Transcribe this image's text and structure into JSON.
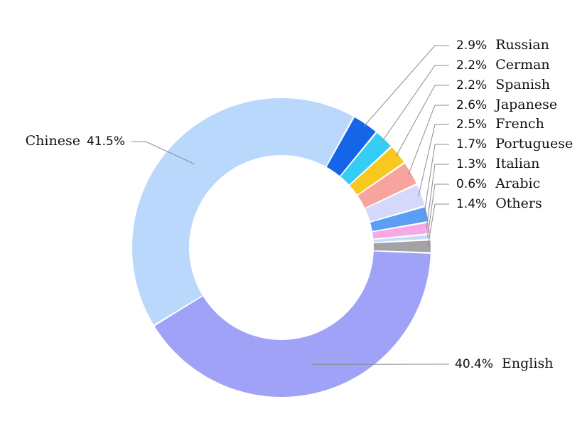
{
  "chart_data": {
    "type": "pie",
    "variant": "donut",
    "title": "",
    "legend": "none",
    "slices": [
      {
        "label": "Russian",
        "value_label": "2.9%",
        "value": 2.9,
        "color": "#1565e8"
      },
      {
        "label": "Cerman",
        "value_label": "2.2%",
        "value": 2.2,
        "color": "#35cdf6"
      },
      {
        "label": "Spanish",
        "value_label": "2.2%",
        "value": 2.2,
        "color": "#f9c81e"
      },
      {
        "label": "Japanese",
        "value_label": "2.6%",
        "value": 2.6,
        "color": "#f7a39e"
      },
      {
        "label": "French",
        "value_label": "2.5%",
        "value": 2.5,
        "color": "#d4d8fb"
      },
      {
        "label": "Portuguese",
        "value_label": "1.7%",
        "value": 1.7,
        "color": "#5a9ef5"
      },
      {
        "label": "Italian",
        "value_label": "1.3%",
        "value": 1.3,
        "color": "#f6a9e6"
      },
      {
        "label": "Arabic",
        "value_label": "0.6%",
        "value": 0.6,
        "color": "#c7dcf8"
      },
      {
        "label": "Others",
        "value_label": "1.4%",
        "value": 1.4,
        "color": "#a3a3a3"
      },
      {
        "label": "English",
        "value_label": "40.4%",
        "value": 40.4,
        "color": "#a0a2f7"
      },
      {
        "label": "Chinese",
        "value_label": "41.5%",
        "value": 41.5,
        "color": "#b9d8fc"
      }
    ]
  }
}
